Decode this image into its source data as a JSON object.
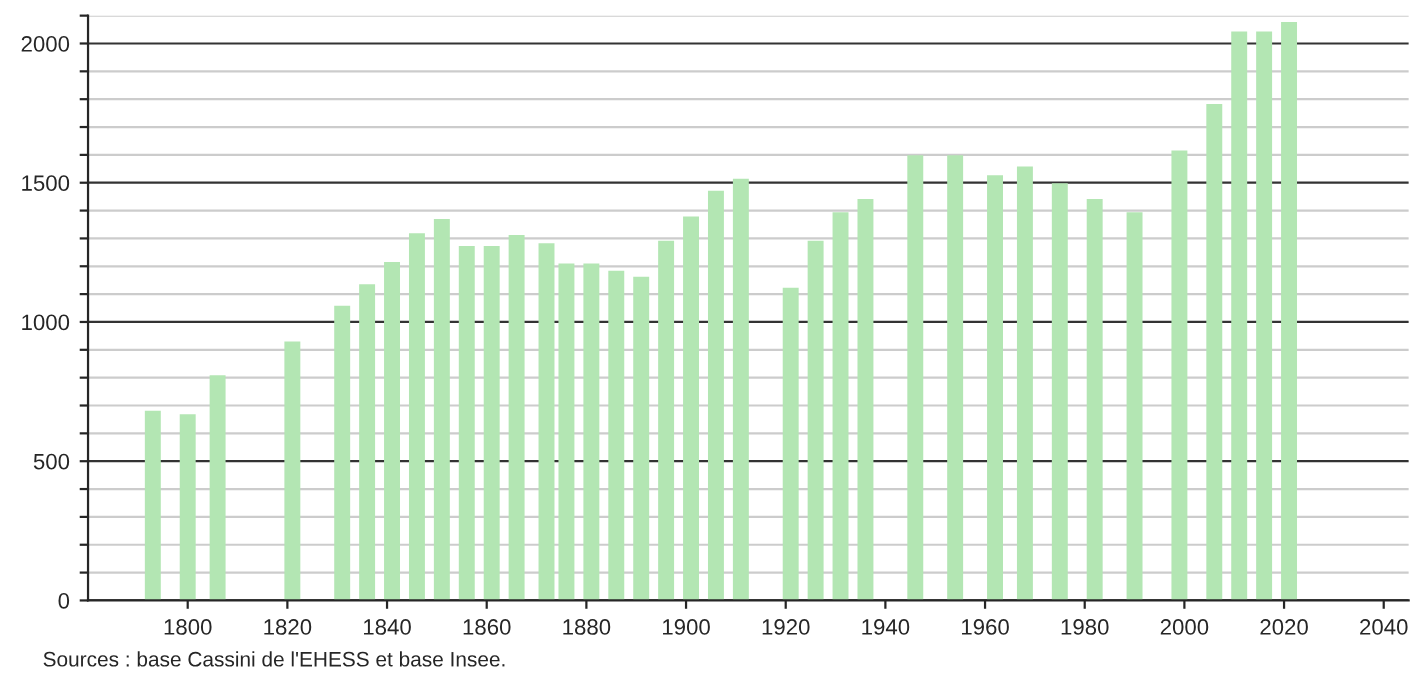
{
  "chart_data": {
    "type": "bar",
    "x": [
      1793,
      1800,
      1806,
      1821,
      1831,
      1836,
      1841,
      1846,
      1851,
      1856,
      1861,
      1866,
      1872,
      1876,
      1881,
      1886,
      1891,
      1896,
      1901,
      1906,
      1911,
      1921,
      1926,
      1931,
      1936,
      1946,
      1954,
      1962,
      1968,
      1975,
      1982,
      1990,
      1999,
      2006,
      2011,
      2016,
      2021
    ],
    "values": [
      681,
      669,
      809,
      930,
      1058,
      1135,
      1215,
      1319,
      1370,
      1273,
      1273,
      1312,
      1283,
      1210,
      1210,
      1184,
      1162,
      1292,
      1379,
      1471,
      1514,
      1123,
      1292,
      1394,
      1442,
      1599,
      1599,
      1527,
      1558,
      1498,
      1442,
      1394,
      1616,
      1783,
      2043,
      2043,
      2077
    ],
    "color": "#b3e6b3",
    "xlim": [
      1780,
      2045
    ],
    "xticks": [
      1800,
      1820,
      1840,
      1860,
      1880,
      1900,
      1920,
      1940,
      1960,
      1980,
      2000,
      2020,
      2040
    ],
    "ylim": [
      0,
      2100
    ],
    "yticks": [
      0,
      {
        "value": 100,
        "label": null
      },
      {
        "value": 200,
        "label": null
      },
      {
        "value": 300,
        "label": null
      },
      {
        "value": 400,
        "label": null
      },
      500,
      {
        "value": 600,
        "label": null
      },
      {
        "value": 700,
        "label": null
      },
      {
        "value": 800,
        "label": null
      },
      {
        "value": 900,
        "label": null
      },
      1000,
      {
        "value": 1100,
        "label": null
      },
      {
        "value": 1200,
        "label": null
      },
      {
        "value": 1300,
        "label": null
      },
      {
        "value": 1400,
        "label": null
      },
      1500,
      {
        "value": 1600,
        "label": null
      },
      {
        "value": 1700,
        "label": null
      },
      {
        "value": 1800,
        "label": null
      },
      {
        "value": 1900,
        "label": null
      },
      2000,
      {
        "value": 2100,
        "label": null
      }
    ],
    "grid": "y",
    "annotations": [
      "Sources : base Cassini de l'EHESS et base Insee."
    ]
  }
}
